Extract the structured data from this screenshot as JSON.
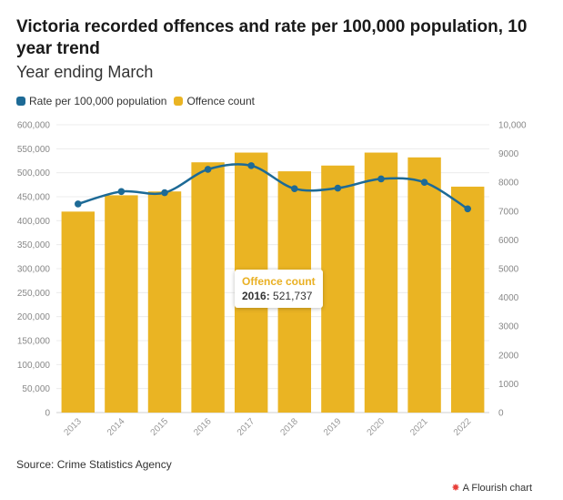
{
  "title": "Victoria recorded offences and rate per 100,000 population, 10 year trend",
  "subtitle": "Year ending March",
  "source": "Source: Crime Statistics Agency",
  "credit": "A Flourish chart",
  "tooltip": {
    "title": "Offence count",
    "year": "2016:",
    "value": "521,737"
  },
  "chart_data": {
    "type": "bar",
    "categories": [
      "2013",
      "2014",
      "2015",
      "2016",
      "2017",
      "2018",
      "2019",
      "2020",
      "2021",
      "2022"
    ],
    "series": [
      {
        "name": "Offence count",
        "type": "bar",
        "axis": "left",
        "color": "#eab423",
        "values": [
          419000,
          453000,
          461000,
          521737,
          542000,
          503000,
          515000,
          542000,
          532000,
          471000
        ]
      },
      {
        "name": "Rate per 100,000 population",
        "type": "line",
        "axis": "right",
        "color": "#1d6a96",
        "values": [
          7250,
          7680,
          7640,
          8450,
          8580,
          7780,
          7800,
          8120,
          8000,
          7080
        ]
      }
    ],
    "y_left": {
      "min": 0,
      "max": 600000,
      "ticks": [
        "0",
        "50,000",
        "100,000",
        "150,000",
        "200,000",
        "250,000",
        "300,000",
        "350,000",
        "400,000",
        "450,000",
        "500,000",
        "550,000",
        "600,000"
      ]
    },
    "y_right": {
      "min": 0,
      "max": 10000,
      "ticks": [
        "0",
        "1000",
        "2000",
        "3000",
        "4000",
        "5000",
        "6000",
        "7000",
        "8000",
        "9000",
        "10,000"
      ]
    },
    "grid": true,
    "legend_position": "top-left"
  }
}
